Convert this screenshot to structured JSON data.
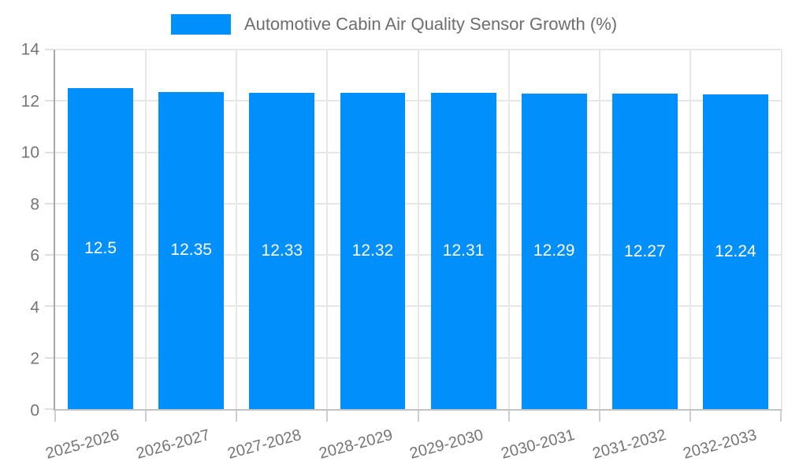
{
  "legend": {
    "swatch_color": "#008FFB",
    "label": "Automotive Cabin Air Quality Sensor Growth (%)"
  },
  "colors": {
    "bar": "#008FFB",
    "gridline": "#e7e7e7",
    "y_axis_line": "#a8a8a8",
    "x_axis_line": "#c2c2c2",
    "tick_mark": "#cfcfcf",
    "axis_label_text": "#757575",
    "legend_text": "#6e6e6e",
    "bar_value_text": "#ffffff",
    "background": "#ffffff"
  },
  "chart_data": {
    "type": "bar",
    "title": "Automotive Cabin Air Quality Sensor Growth (%)",
    "categories": [
      "2025-2026",
      "2026-2027",
      "2027-2028",
      "2028-2029",
      "2029-2030",
      "2030-2031",
      "2031-2032",
      "2032-2033"
    ],
    "values": [
      12.5,
      12.35,
      12.33,
      12.32,
      12.31,
      12.29,
      12.27,
      12.24
    ],
    "bar_labels": [
      "12.5",
      "12.35",
      "12.33",
      "12.32",
      "12.31",
      "12.29",
      "12.27",
      "12.24"
    ],
    "xlabel": "",
    "ylabel": "",
    "ylim": [
      0,
      14
    ],
    "yticks": [
      0,
      2,
      4,
      6,
      8,
      10,
      12,
      14
    ],
    "grid": true,
    "legend_position": "top",
    "bar_color": "#008FFB",
    "value_label_color": "#ffffff",
    "x_label_rotation_deg": -15
  }
}
